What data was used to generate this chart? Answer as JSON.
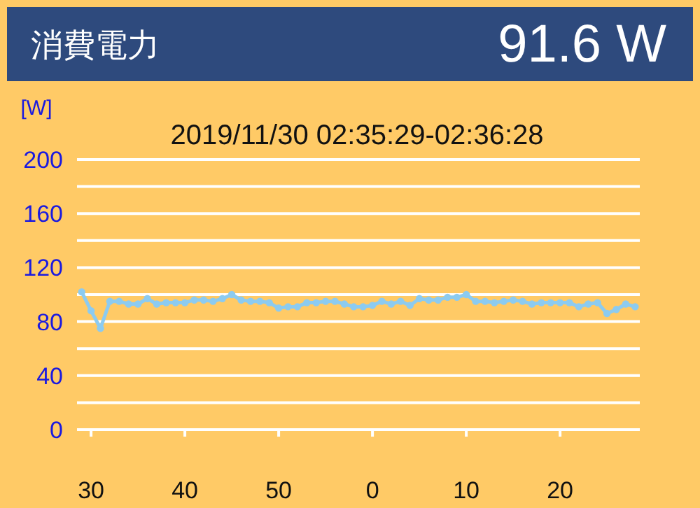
{
  "chart_data": {
    "type": "line",
    "title": "消費電力",
    "annotations": [
      "91.6 W"
    ],
    "subtitle": "2019/11/30 02:35:29-02:36:28",
    "ylabel": "[W]",
    "x": [
      "2019-11-30T02:35:29",
      "2019-11-30T02:35:30",
      "2019-11-30T02:35:31",
      "2019-11-30T02:35:32",
      "2019-11-30T02:35:33",
      "2019-11-30T02:35:34",
      "2019-11-30T02:35:35",
      "2019-11-30T02:35:36",
      "2019-11-30T02:35:37",
      "2019-11-30T02:35:38",
      "2019-11-30T02:35:39",
      "2019-11-30T02:35:40",
      "2019-11-30T02:35:41",
      "2019-11-30T02:35:42",
      "2019-11-30T02:35:43",
      "2019-11-30T02:35:44",
      "2019-11-30T02:35:45",
      "2019-11-30T02:35:46",
      "2019-11-30T02:35:47",
      "2019-11-30T02:35:48",
      "2019-11-30T02:35:49",
      "2019-11-30T02:35:50",
      "2019-11-30T02:35:51",
      "2019-11-30T02:35:52",
      "2019-11-30T02:35:53",
      "2019-11-30T02:35:54",
      "2019-11-30T02:35:55",
      "2019-11-30T02:35:56",
      "2019-11-30T02:35:57",
      "2019-11-30T02:35:58",
      "2019-11-30T02:35:59",
      "2019-11-30T02:36:00",
      "2019-11-30T02:36:01",
      "2019-11-30T02:36:02",
      "2019-11-30T02:36:03",
      "2019-11-30T02:36:04",
      "2019-11-30T02:36:05",
      "2019-11-30T02:36:06",
      "2019-11-30T02:36:07",
      "2019-11-30T02:36:08",
      "2019-11-30T02:36:09",
      "2019-11-30T02:36:10",
      "2019-11-30T02:36:11",
      "2019-11-30T02:36:12",
      "2019-11-30T02:36:13",
      "2019-11-30T02:36:14",
      "2019-11-30T02:36:15",
      "2019-11-30T02:36:16",
      "2019-11-30T02:36:17",
      "2019-11-30T02:36:18",
      "2019-11-30T02:36:19",
      "2019-11-30T02:36:20",
      "2019-11-30T02:36:21",
      "2019-11-30T02:36:22",
      "2019-11-30T02:36:23",
      "2019-11-30T02:36:24",
      "2019-11-30T02:36:25",
      "2019-11-30T02:36:26",
      "2019-11-30T02:36:27",
      "2019-11-30T02:36:28"
    ],
    "series": [
      {
        "color": "#8ccbf0",
        "values": [
          102,
          88,
          75,
          95,
          95,
          93,
          93,
          97,
          93,
          94,
          94,
          94,
          96,
          96,
          95,
          97,
          100,
          96,
          95,
          95,
          94,
          90,
          91,
          91,
          94,
          94,
          95,
          95,
          93,
          91,
          91,
          92,
          95,
          93,
          95,
          92,
          97,
          96,
          96,
          98,
          98,
          100,
          95,
          95,
          94,
          95,
          96,
          95,
          93,
          94,
          94,
          94,
          94,
          91,
          93,
          94,
          86,
          89,
          93,
          91
        ]
      }
    ],
    "xlim": [
      "2019-11-30T02:35:28.5",
      "2019-11-30T02:36:28.5"
    ],
    "xticks": [
      {
        "value": "2019-11-30T02:35:30",
        "label": "30"
      },
      {
        "value": "2019-11-30T02:35:40",
        "label": "40"
      },
      {
        "value": "2019-11-30T02:35:50",
        "label": "50"
      },
      {
        "value": "2019-11-30T02:36:00",
        "label": "0"
      },
      {
        "value": "2019-11-30T02:36:10",
        "label": "10"
      },
      {
        "value": "2019-11-30T02:36:20",
        "label": "20"
      }
    ],
    "ylim": [
      0,
      200
    ],
    "yticks": [
      0,
      {
        "value": 20,
        "label": null
      },
      40,
      {
        "value": 60,
        "label": null
      },
      80,
      {
        "value": 100,
        "label": null
      },
      120,
      {
        "value": 140,
        "label": null
      },
      160,
      {
        "value": 180,
        "label": null
      },
      200
    ],
    "grid": "y",
    "marker": "circle"
  }
}
